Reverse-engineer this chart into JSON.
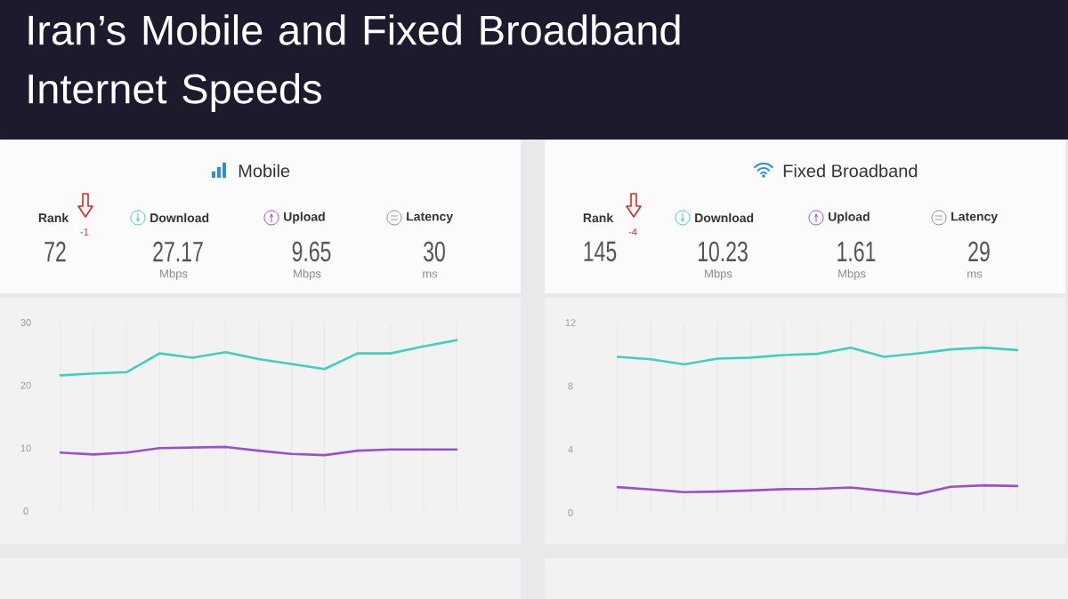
{
  "chart_data": [
    {
      "type": "other",
      "title": "Iran’s Mobile and Fixed Broadband Internet Speeds"
    },
    {
      "type": "other",
      "title": "Mobile",
      "annotations": [
        "Rank",
        "72",
        "-1",
        "Download",
        "27.17",
        "Mbps",
        "Upload",
        "9.65",
        "Mbps",
        "Latency",
        "30",
        "ms"
      ]
    },
    {
      "type": "line",
      "categories": [
        null,
        null,
        null,
        null,
        null,
        null,
        null,
        null,
        null,
        null,
        null,
        null,
        null
      ],
      "series": [
        {
          "color": "#3fcfbe",
          "values": [
            21.6,
            21.9,
            22.1,
            25.1,
            24.4,
            25.3,
            24.2,
            23.4,
            22.6,
            25.1,
            25.1,
            26.2,
            27.2
          ]
        },
        {
          "color": "#9a4fd0",
          "values": [
            9.3,
            9.0,
            9.3,
            10.0,
            10.1,
            10.2,
            9.6,
            9.1,
            8.9,
            9.6,
            9.8,
            9.8,
            9.8
          ]
        }
      ],
      "ylim": [
        0,
        30
      ],
      "yticks": [
        0,
        10,
        20,
        30
      ],
      "grid": "x"
    },
    {
      "type": "other",
      "title": "Fixed Broadband",
      "annotations": [
        "Rank",
        "145",
        "-4",
        "Download",
        "10.23",
        "Mbps",
        "Upload",
        "1.61",
        "Mbps",
        "Latency",
        "29",
        "ms"
      ]
    },
    {
      "type": "line",
      "categories": [
        null,
        null,
        null,
        null,
        null,
        null,
        null,
        null,
        null,
        null,
        null,
        null,
        null
      ],
      "series": [
        {
          "color": "#3fcfbe",
          "values": [
            9.84,
            9.69,
            9.36,
            9.73,
            9.79,
            9.95,
            10.03,
            10.42,
            9.84,
            10.05,
            10.31,
            10.42,
            10.27
          ]
        },
        {
          "color": "#9a4fd0",
          "values": [
            1.62,
            1.47,
            1.3,
            1.34,
            1.41,
            1.49,
            1.51,
            1.6,
            1.38,
            1.17,
            1.64,
            1.73,
            1.69
          ]
        }
      ],
      "ylim": [
        0,
        12
      ],
      "yticks": [
        0,
        4,
        8,
        12
      ],
      "grid": "x"
    }
  ]
}
